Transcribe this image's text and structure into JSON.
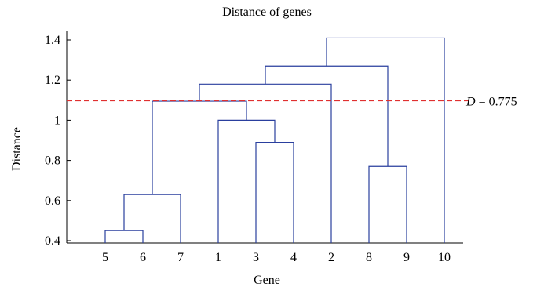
{
  "chart_data": {
    "type": "dendrogram",
    "title": "Distance of genes",
    "xlabel": "Gene",
    "ylabel": "Distance",
    "ylim": [
      0.4,
      1.45
    ],
    "yticks": [
      "0.4",
      "0.6",
      "0.8",
      "1",
      "1.2",
      "1.4"
    ],
    "yticks_values": [
      0.4,
      0.6,
      0.8,
      1.0,
      1.2,
      1.4
    ],
    "leaf_order": [
      "5",
      "6",
      "7",
      "1",
      "3",
      "4",
      "2",
      "8",
      "9",
      "10"
    ],
    "merges": [
      {
        "left": "5",
        "right": "6",
        "height": 0.45
      },
      {
        "left": "3",
        "right": "4",
        "height": 0.89
      },
      {
        "left": "8",
        "right": "9",
        "height": 0.77
      },
      {
        "left": "5,6",
        "right": "7",
        "height": 0.63
      },
      {
        "left": "1",
        "right": "3,4",
        "height": 1.0
      },
      {
        "left": "5,6,7",
        "right": "1,3,4",
        "height": 1.095
      },
      {
        "left": "5,6,7,1,3,4",
        "right": "2",
        "height": 1.18
      },
      {
        "left": "5,6,7,1,3,4,2",
        "right": "8,9",
        "height": 1.27
      },
      {
        "left": "5,6,7,1,3,4,2,8,9",
        "right": "10",
        "height": 1.41
      }
    ],
    "threshold": {
      "value": 1.097,
      "label_var": "D",
      "label_text": " = 0.775",
      "color": "#e03030"
    },
    "line_color": "#2a3f9e",
    "grid": false
  }
}
